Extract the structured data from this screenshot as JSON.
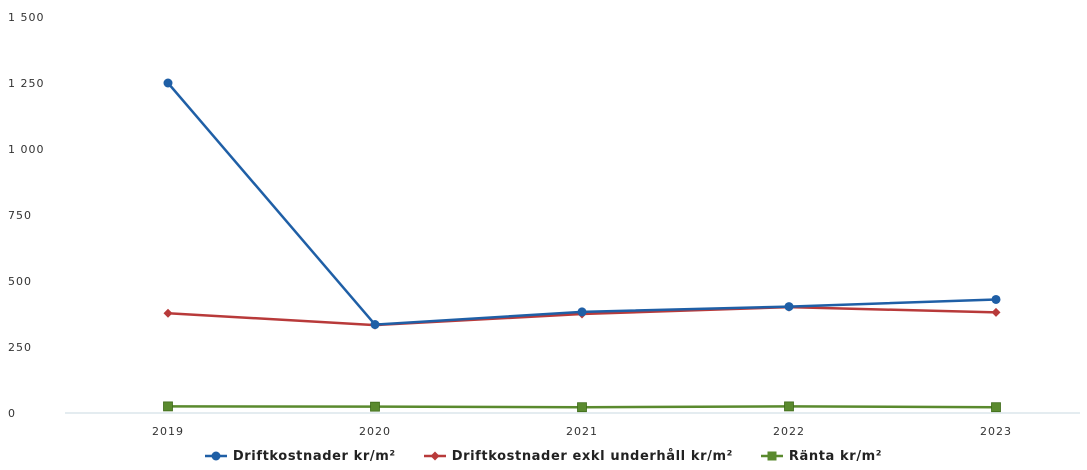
{
  "chart_data": {
    "type": "line",
    "categories": [
      "2019",
      "2020",
      "2021",
      "2022",
      "2023"
    ],
    "ylim": [
      0,
      1500
    ],
    "yticks": [
      0,
      250,
      500,
      750,
      1000,
      1250,
      1500
    ],
    "ytick_labels": [
      "0",
      "250",
      "500",
      "750",
      "1 000",
      "1 250",
      "1 500"
    ],
    "grid": false,
    "legend": "bottom",
    "series": [
      {
        "name": "Driftkostnader kr/m²",
        "color": "#1f5fa6",
        "marker": "circle",
        "values": [
          1250,
          335,
          383,
          403,
          430
        ]
      },
      {
        "name": "Driftkostnader exkl underhåll kr/m²",
        "color": "#b83a3a",
        "marker": "diamond",
        "values": [
          378,
          333,
          375,
          401,
          381
        ]
      },
      {
        "name": "Ränta kr/m²",
        "color": "#5a8a2e",
        "marker": "square",
        "values": [
          25,
          24,
          22,
          25,
          22
        ]
      }
    ]
  }
}
